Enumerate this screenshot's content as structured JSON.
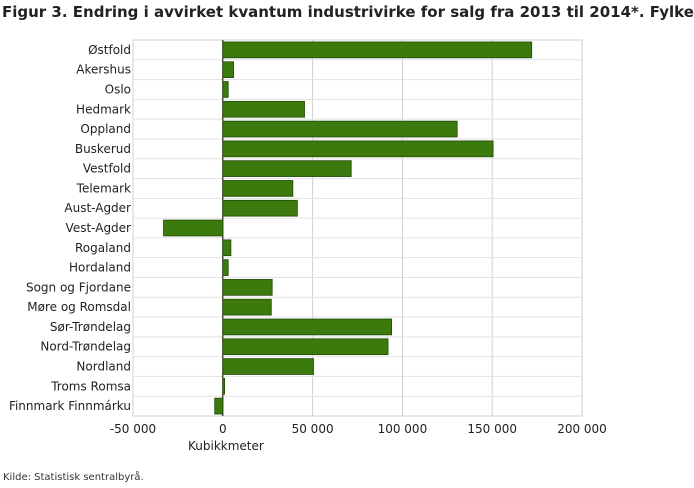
{
  "chart_data": {
    "type": "bar",
    "orientation": "horizontal",
    "title": "Figur 3. Endring i avvirket kvantum industrivirke for salg fra 2013 til 2014*. Fylke",
    "xlabel": "Kubikkmeter",
    "ylabel": "",
    "xlim": [
      -50000,
      200000
    ],
    "xticks": [
      -50000,
      0,
      50000,
      100000,
      150000,
      200000
    ],
    "xtick_labels": [
      "-50 000",
      "0",
      "50 000",
      "100 000",
      "150 000",
      "200 000"
    ],
    "grid": true,
    "bar_color": "#3d7a0e",
    "categories": [
      "Østfold",
      "Akershus",
      "Oslo",
      "Hedmark",
      "Oppland",
      "Buskerud",
      "Vestfold",
      "Telemark",
      "Aust-Agder",
      "Vest-Agder",
      "Rogaland",
      "Hordaland",
      "Sogn og Fjordane",
      "Møre og Romsdal",
      "Sør-Trøndelag",
      "Nord-Trøndelag",
      "Nordland",
      "Troms Romsa",
      "Finnmark Finnmárku"
    ],
    "values": [
      172000,
      6000,
      3000,
      45500,
      130500,
      150500,
      71500,
      39000,
      41500,
      -33000,
      4500,
      3000,
      27500,
      27000,
      94000,
      92000,
      50500,
      1000,
      -4500
    ]
  },
  "source": "Kilde: Statistisk sentralbyrå."
}
